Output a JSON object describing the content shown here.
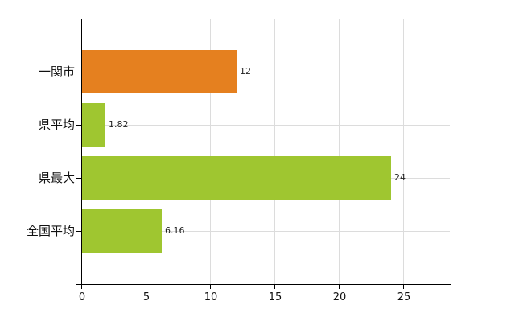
{
  "chart": {
    "background": "#ffffff",
    "colors": {
      "axis": "#000000",
      "gridline": "#dcdcdc",
      "plot_border_dashed": "#cccccc",
      "category_label": "#111111",
      "tick_label": "#111111",
      "value_label": "#222222"
    }
  },
  "chart_data": {
    "type": "bar",
    "orientation": "horizontal",
    "title": "",
    "categories": [
      "一関市",
      "県平均",
      "県最大",
      "全国平均"
    ],
    "values": [
      12,
      1.82,
      24,
      6.16
    ],
    "value_labels": [
      "12",
      "1.82",
      "24",
      "6.16"
    ],
    "bar_colors": [
      "#e5801f",
      "#9fc630",
      "#9fc630",
      "#9fc630"
    ],
    "x_ticks": [
      0,
      5,
      10,
      15,
      20,
      25
    ],
    "x_tick_labels": [
      "0",
      "5",
      "10",
      "15",
      "20",
      "25"
    ],
    "xlim": [
      0,
      28.6
    ],
    "grid": true,
    "legend": false
  }
}
